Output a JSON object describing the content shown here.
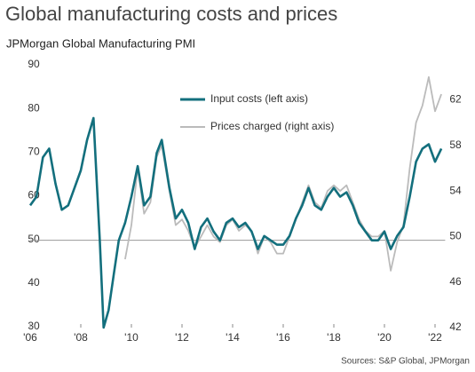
{
  "chart_data": {
    "type": "line",
    "title": "Global manufacturing costs and prices",
    "subtitle": "JPMorgan Global Manufacturing PMI",
    "source": "Sources: S&P Global, JPMorgan",
    "x": [
      2006,
      2006.25,
      2006.5,
      2006.75,
      2007,
      2007.25,
      2007.5,
      2007.75,
      2008,
      2008.25,
      2008.5,
      2008.75,
      2008.9,
      2009.1,
      2009.3,
      2009.5,
      2009.75,
      2010,
      2010.25,
      2010.5,
      2010.75,
      2011,
      2011.2,
      2011.5,
      2011.75,
      2012,
      2012.25,
      2012.5,
      2012.75,
      2013,
      2013.25,
      2013.5,
      2013.75,
      2014,
      2014.25,
      2014.5,
      2014.75,
      2015,
      2015.25,
      2015.5,
      2015.75,
      2016,
      2016.25,
      2016.5,
      2016.75,
      2017,
      2017.25,
      2017.5,
      2017.75,
      2018,
      2018.25,
      2018.5,
      2018.75,
      2019,
      2019.25,
      2019.5,
      2019.75,
      2020,
      2020.25,
      2020.5,
      2020.75,
      2021,
      2021.25,
      2021.5,
      2021.75,
      2022,
      2022.25
    ],
    "series": [
      {
        "name": "Input costs (left axis)",
        "color": "#136f7d",
        "axis": "y",
        "values": [
          58,
          60,
          69,
          71,
          63,
          57,
          58,
          62,
          66,
          73,
          78,
          50,
          30,
          34,
          42,
          50,
          54,
          60,
          67,
          58,
          60,
          70,
          73,
          62,
          55,
          57,
          54,
          48,
          53,
          55,
          52,
          50,
          54,
          55,
          53,
          54,
          52,
          48,
          51,
          50,
          49,
          49,
          51,
          55,
          58,
          62,
          58,
          57,
          60,
          62,
          60,
          61,
          58,
          54,
          52,
          50,
          50,
          52,
          48,
          51,
          53,
          60,
          68,
          71,
          72,
          68,
          71
        ]
      },
      {
        "name": "Prices charged (right axis)",
        "color": "#bbbbbb",
        "axis": "y2",
        "values": [
          null,
          null,
          null,
          null,
          null,
          null,
          null,
          null,
          null,
          null,
          null,
          null,
          null,
          null,
          null,
          null,
          48,
          51,
          56,
          52,
          53,
          57,
          58,
          54,
          51,
          51.5,
          50.5,
          49,
          50,
          51,
          50,
          49.5,
          51,
          51.5,
          50.5,
          51,
          50.5,
          48.5,
          50,
          49.5,
          48.5,
          48.5,
          50,
          51.5,
          53,
          54.5,
          53,
          52.5,
          54,
          54.5,
          54,
          54.5,
          53,
          51.5,
          50.5,
          50,
          50,
          50.5,
          47,
          49.5,
          51,
          56,
          60,
          61.5,
          64,
          61,
          62.5
        ]
      }
    ],
    "xlim": [
      2006,
      2022.4
    ],
    "xticks": [
      {
        "value": 2006,
        "label": "'06"
      },
      {
        "value": 2008,
        "label": "'08"
      },
      {
        "value": 2010,
        "label": "'10"
      },
      {
        "value": 2012,
        "label": "'12"
      },
      {
        "value": 2014,
        "label": "'14"
      },
      {
        "value": 2016,
        "label": "'16"
      },
      {
        "value": 2018,
        "label": "'18"
      },
      {
        "value": 2020,
        "label": "'20"
      },
      {
        "value": 2022,
        "label": "'22"
      }
    ],
    "ylim": [
      30,
      90
    ],
    "yticks": [
      30,
      40,
      50,
      60,
      70,
      80,
      90
    ],
    "y2lim": [
      42,
      65
    ],
    "y2ticks": [
      42,
      46,
      50,
      54,
      58,
      62
    ],
    "reference_line": 50,
    "legend": "top"
  }
}
